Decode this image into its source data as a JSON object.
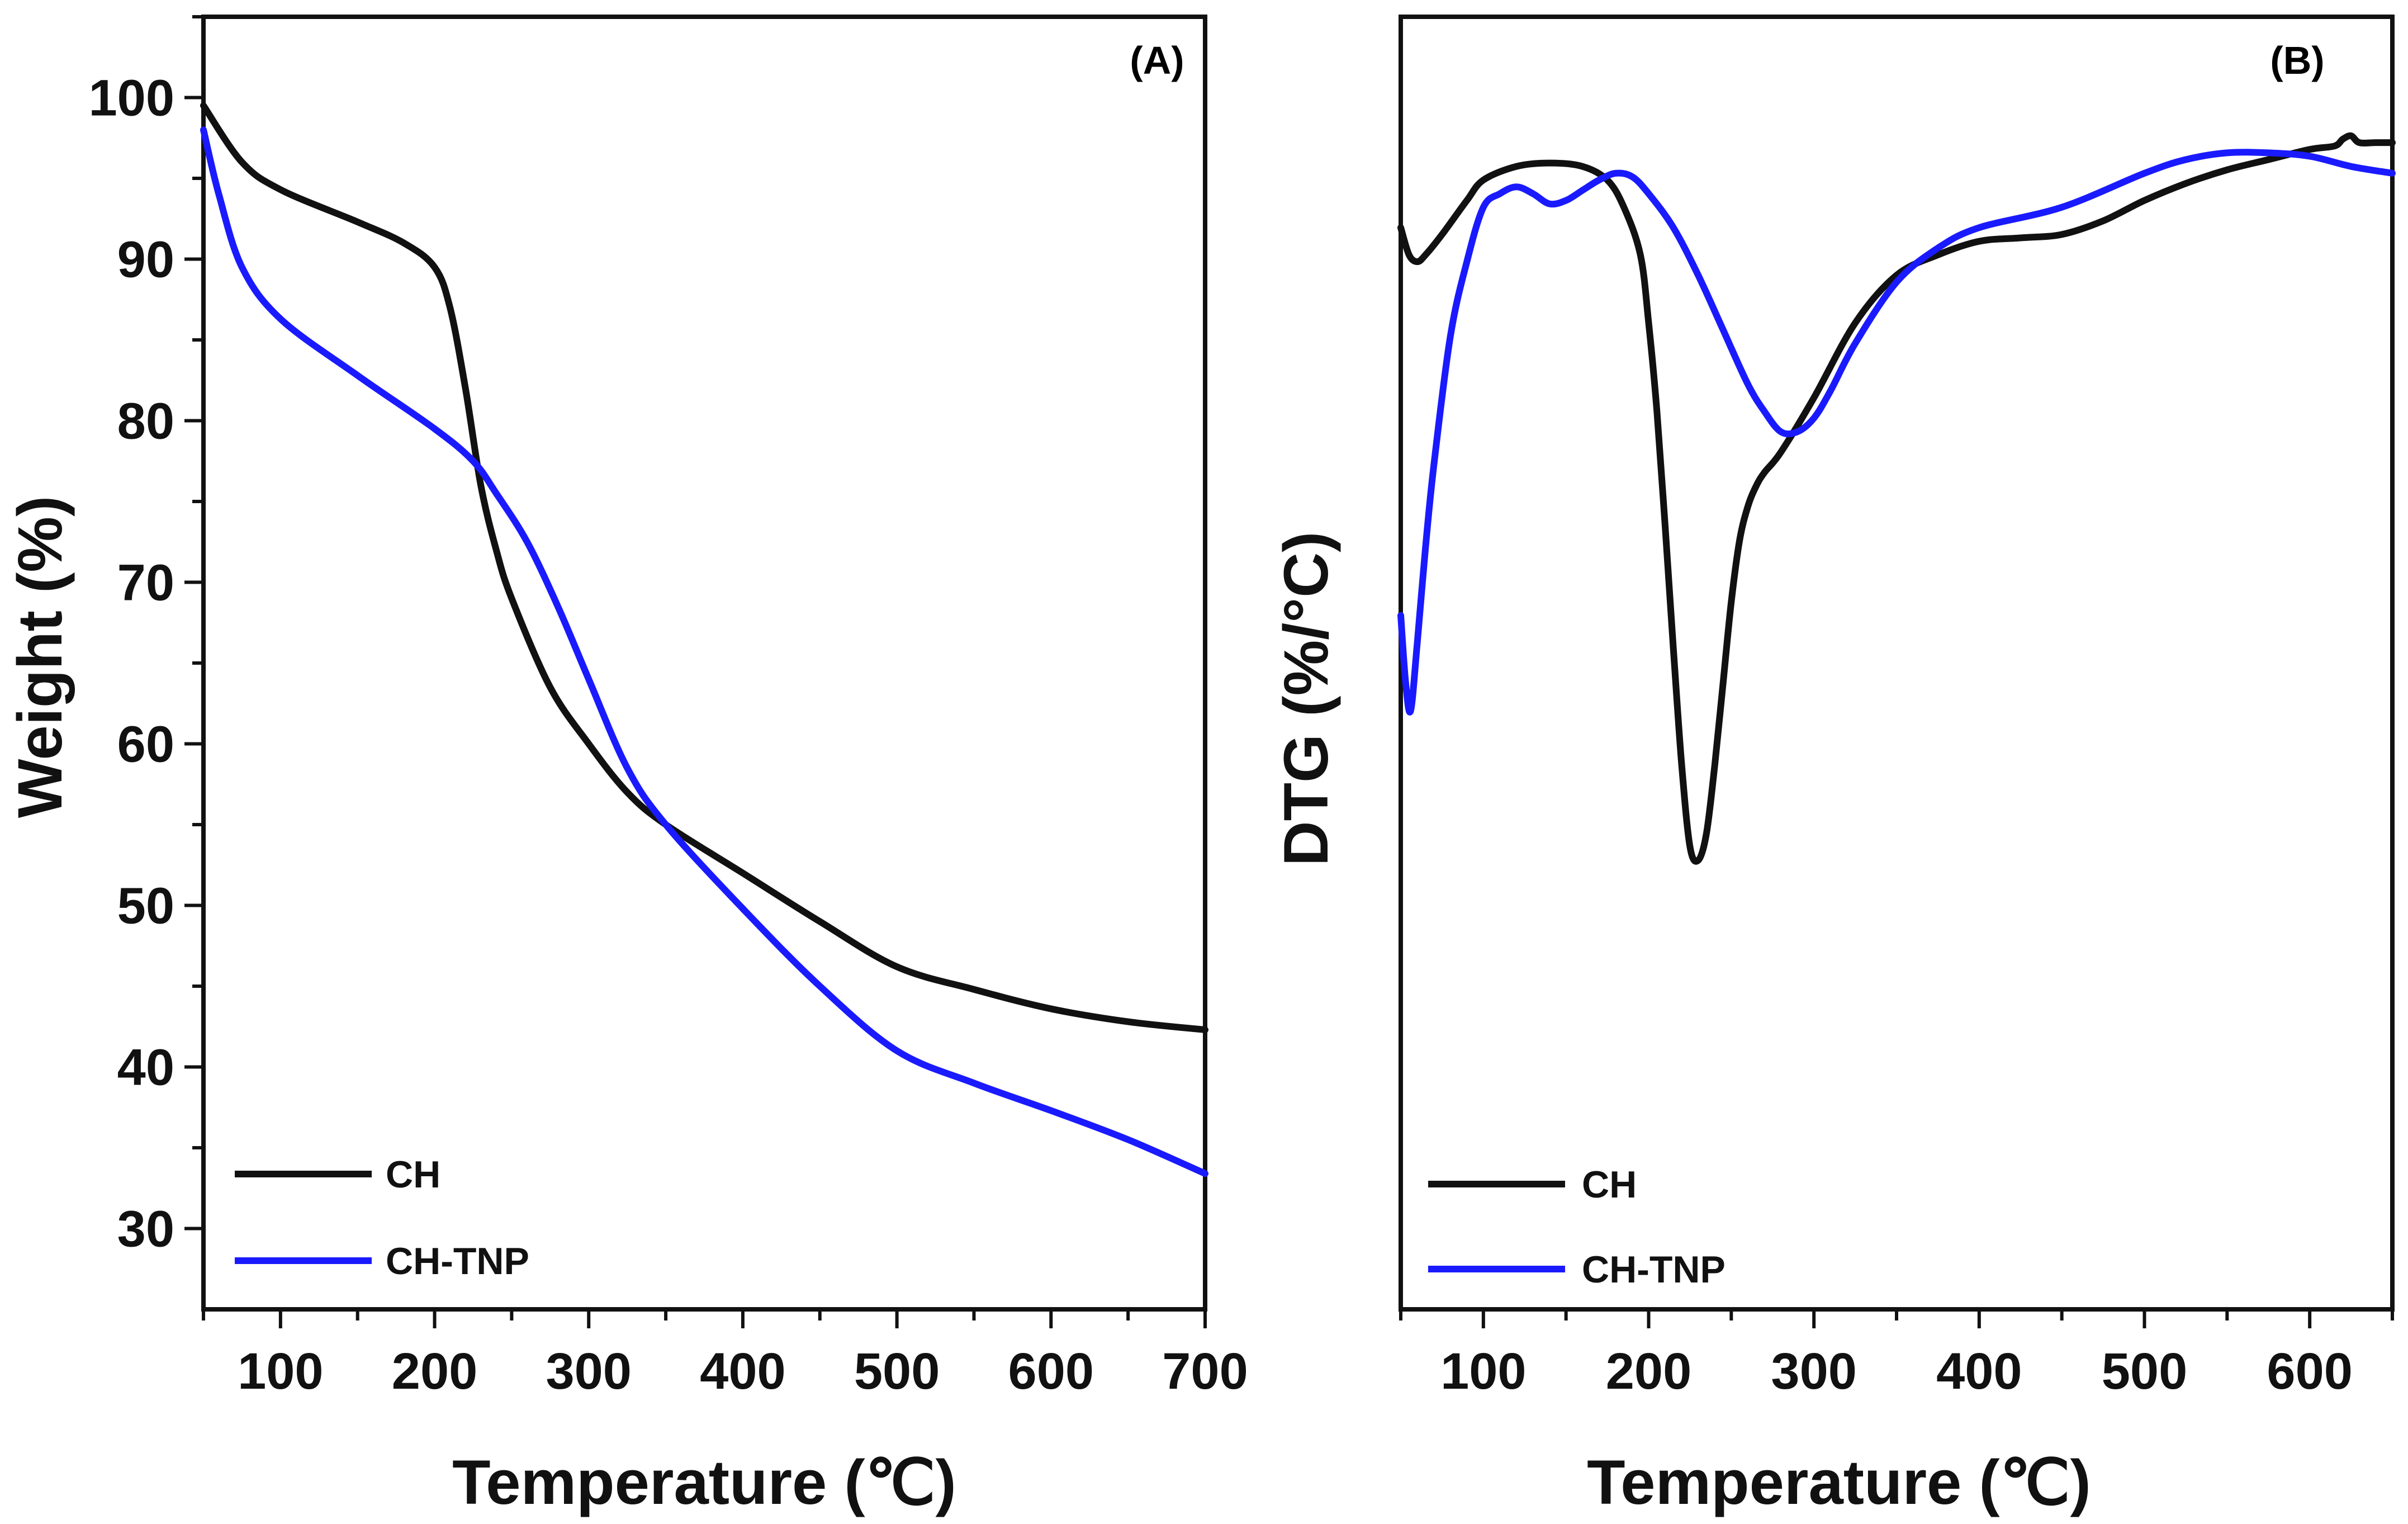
{
  "colors": {
    "ch": "#111111",
    "ch_tnp": "#1a1aff"
  },
  "chart_data": [
    {
      "type": "line",
      "panel_label": "(A)",
      "xlabel": "Temperature (℃)",
      "ylabel": "Weight (%)",
      "xlim": [
        50,
        700
      ],
      "ylim": [
        25,
        105
      ],
      "x_ticks": [
        100,
        200,
        300,
        400,
        500,
        600,
        700
      ],
      "y_ticks": [
        30,
        40,
        50,
        60,
        70,
        80,
        90,
        100
      ],
      "legend_position": "bottom-left",
      "series": [
        {
          "name": "CH",
          "color": "#111111",
          "x": [
            50,
            75,
            100,
            150,
            180,
            200,
            210,
            220,
            230,
            240,
            250,
            275,
            300,
            325,
            350,
            400,
            450,
            500,
            550,
            600,
            650,
            700
          ],
          "y": [
            99.5,
            96,
            94.3,
            92.3,
            91,
            89.5,
            87,
            82,
            76,
            72,
            69,
            63.5,
            60,
            57,
            55,
            52,
            49,
            46.2,
            44.8,
            43.6,
            42.8,
            42.3
          ]
        },
        {
          "name": "CH-TNP",
          "color": "#1a1aff",
          "x": [
            50,
            60,
            75,
            100,
            150,
            200,
            225,
            240,
            260,
            280,
            300,
            325,
            350,
            400,
            450,
            500,
            550,
            600,
            650,
            700
          ],
          "y": [
            98,
            94,
            89.5,
            86.3,
            82.8,
            79.5,
            77.5,
            75.5,
            72.5,
            68.5,
            64,
            58.5,
            55,
            49.8,
            45,
            41,
            39,
            37.3,
            35.5,
            33.4
          ]
        }
      ]
    },
    {
      "type": "line",
      "panel_label": "(B)",
      "xlabel": "Temperature (℃)",
      "ylabel": "DTG (%/°C)",
      "xlim": [
        50,
        650
      ],
      "ylim": [
        -1.6,
        0.3
      ],
      "x_ticks": [
        100,
        200,
        300,
        400,
        500,
        600
      ],
      "y_ticks": [],
      "legend_position": "bottom-left",
      "series": [
        {
          "name": "CH",
          "color": "#111111",
          "x": [
            50,
            55,
            60,
            65,
            75,
            90,
            100,
            120,
            140,
            160,
            175,
            185,
            195,
            200,
            205,
            210,
            215,
            220,
            225,
            230,
            235,
            240,
            245,
            250,
            255,
            260,
            265,
            270,
            280,
            300,
            325,
            350,
            375,
            400,
            425,
            450,
            475,
            500,
            525,
            550,
            575,
            600,
            615,
            620,
            625,
            630,
            640,
            650
          ],
          "y": [
            -0.01,
            -0.05,
            -0.06,
            -0.05,
            -0.02,
            0.03,
            0.06,
            0.08,
            0.085,
            0.08,
            0.06,
            0.02,
            -0.05,
            -0.15,
            -0.28,
            -0.45,
            -0.63,
            -0.8,
            -0.92,
            -0.94,
            -0.9,
            -0.8,
            -0.68,
            -0.56,
            -0.47,
            -0.42,
            -0.39,
            -0.37,
            -0.34,
            -0.26,
            -0.15,
            -0.08,
            -0.05,
            -0.03,
            -0.025,
            -0.02,
            0.0,
            0.03,
            0.055,
            0.075,
            0.09,
            0.105,
            0.11,
            0.12,
            0.125,
            0.115,
            0.115,
            0.115
          ]
        },
        {
          "name": "CH-TNP",
          "color": "#1a1aff",
          "x": [
            50,
            53,
            56,
            60,
            65,
            70,
            80,
            90,
            100,
            110,
            120,
            130,
            140,
            150,
            160,
            170,
            180,
            190,
            200,
            215,
            230,
            245,
            260,
            270,
            280,
            290,
            300,
            310,
            325,
            350,
            375,
            400,
            450,
            500,
            525,
            550,
            575,
            600,
            625,
            650
          ],
          "y": [
            -0.58,
            -0.68,
            -0.72,
            -0.62,
            -0.48,
            -0.36,
            -0.17,
            -0.06,
            0.02,
            0.04,
            0.05,
            0.04,
            0.025,
            0.03,
            0.045,
            0.06,
            0.07,
            0.065,
            0.04,
            -0.01,
            -0.08,
            -0.16,
            -0.24,
            -0.28,
            -0.31,
            -0.31,
            -0.29,
            -0.25,
            -0.18,
            -0.09,
            -0.04,
            -0.01,
            0.02,
            0.07,
            0.09,
            0.1,
            0.1,
            0.095,
            0.08,
            0.07
          ]
        }
      ]
    }
  ]
}
